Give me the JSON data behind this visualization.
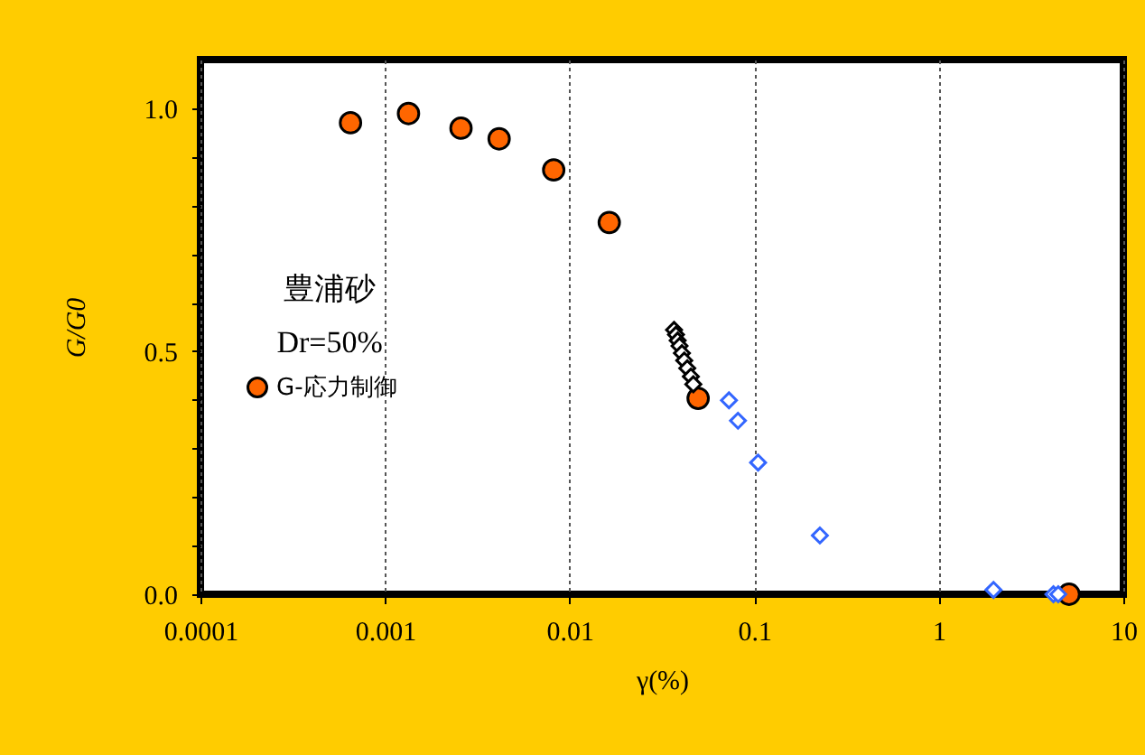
{
  "chart_data": {
    "type": "scatter",
    "xlabel": "γ(%)",
    "ylabel": "G/G0",
    "log": "x",
    "grid": "x",
    "legend": "left",
    "xlim": [
      0.0001,
      10
    ],
    "xticks": [
      0.0001,
      0.001,
      0.01,
      0.1,
      1,
      10
    ],
    "ylim": [
      0,
      1.1
    ],
    "yticks": [
      {
        "value": 0,
        "label": "0.0"
      },
      {
        "value": 0.1,
        "label": null
      },
      {
        "value": 0.2,
        "label": null
      },
      {
        "value": 0.3,
        "label": null
      },
      {
        "value": 0.4,
        "label": null
      },
      {
        "value": 0.5,
        "label": "0.5"
      },
      {
        "value": 0.6,
        "label": null
      },
      {
        "value": 0.7,
        "label": null
      },
      {
        "value": 0.8,
        "label": null
      },
      {
        "value": 0.9,
        "label": null
      },
      {
        "value": 1.0,
        "label": "1.0"
      }
    ],
    "annotations": [
      "豊浦砂",
      "Dr=50%"
    ],
    "series": [
      {
        "name": "G-応力制御",
        "color": "#ff6600",
        "marker": "circle",
        "x": [
          0.00065,
          0.00134,
          0.00258,
          0.00415,
          0.0082,
          0.0164,
          0.0497,
          5.08
        ],
        "values": [
          0.97,
          0.989,
          0.959,
          0.937,
          0.873,
          0.765,
          0.403,
          0.0
        ]
      },
      {
        "color": "#000000",
        "marker": "diamond",
        "x": [
          0.0368,
          0.0377,
          0.0385,
          0.0394,
          0.0406,
          0.0418,
          0.0434,
          0.0454,
          0.0468
        ],
        "values": [
          0.544,
          0.534,
          0.522,
          0.511,
          0.496,
          0.481,
          0.465,
          0.448,
          0.432
        ]
      },
      {
        "color": "#3366ff",
        "marker": "diamond",
        "x": [
          0.073,
          0.0817,
          0.105,
          0.227,
          1.98,
          4.18,
          4.44
        ],
        "values": [
          0.399,
          0.357,
          0.271,
          0.121,
          0.009,
          0.0,
          0.0
        ]
      }
    ]
  }
}
